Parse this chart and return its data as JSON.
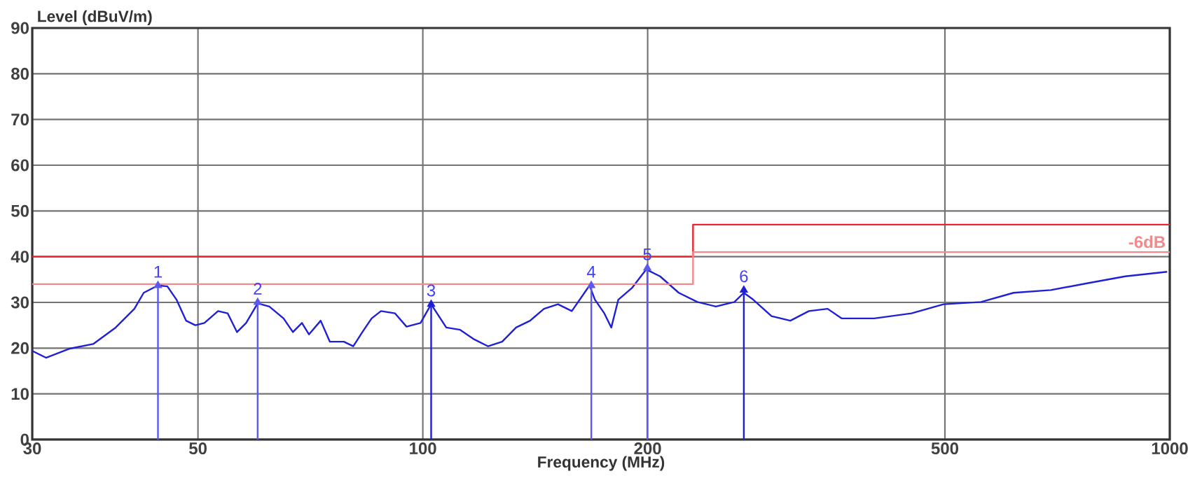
{
  "chart_data": {
    "type": "line",
    "xlabel": "Frequency (MHz)",
    "ylabel": "Level (dBuV/m)",
    "log": "x",
    "xlim": [
      30,
      1000
    ],
    "ylim": [
      0,
      90
    ],
    "xticks": [
      30,
      50,
      100,
      200,
      500,
      1000
    ],
    "yticks": [
      0,
      10,
      20,
      30,
      40,
      50,
      60,
      70,
      80,
      90
    ],
    "grid": true,
    "series": [
      {
        "color": "#1f1fd6",
        "x": [
          30,
          31.3,
          33.7,
          36.2,
          38.8,
          41.1,
          42.3,
          44.2,
          45.5,
          46.8,
          48.2,
          49.6,
          51.0,
          53.2,
          54.8,
          56.4,
          58.0,
          60.1,
          62.3,
          65.1,
          67.0,
          68.9,
          70.4,
          73.0,
          75.1,
          78.4,
          80.7,
          83.0,
          85.4,
          87.9,
          91.8,
          95.1,
          99.3,
          102.6,
          107.5,
          112.2,
          117.2,
          122.3,
          127.7,
          133.3,
          139.2,
          145.3,
          151.7,
          158.3,
          167.2,
          170,
          175,
          178.8,
          182.7,
          190.7,
          199.1,
          207.8,
          220.1,
          233.1,
          246.8,
          261.3,
          269,
          276.9,
          293,
          310.5,
          328.8,
          348.3,
          363.6,
          402,
          451,
          498,
          559,
          618,
          693,
          777,
          872,
          992
        ],
        "values": [
          19.4,
          17.9,
          19.9,
          20.9,
          24.5,
          28.6,
          32.1,
          33.7,
          33.5,
          30.6,
          26,
          25,
          25.5,
          28.1,
          27.6,
          23.5,
          25.5,
          29.8,
          29.1,
          26.5,
          23.5,
          25.5,
          23,
          26,
          21.4,
          21.4,
          20.4,
          23.5,
          26.5,
          28.1,
          27.6,
          24.7,
          25.5,
          29.6,
          24.5,
          24,
          21.9,
          20.4,
          21.4,
          24.5,
          26,
          28.6,
          29.6,
          28.1,
          33.7,
          30.6,
          27.6,
          24.5,
          30.6,
          33.2,
          37.2,
          35.7,
          32.1,
          30.1,
          29.1,
          30.1,
          32.1,
          30.6,
          27,
          26,
          28.1,
          28.6,
          26.5,
          26.5,
          27.6,
          29.6,
          30.1,
          32.1,
          32.7,
          34.2,
          35.7,
          36.7
        ]
      },
      {
        "type": "step",
        "color": "#e8262b",
        "x": [
          30,
          230,
          1000
        ],
        "values": [
          40,
          47,
          47
        ]
      },
      {
        "type": "step",
        "name": "-6dB",
        "color": "#f08a8c",
        "x": [
          30,
          230,
          1000
        ],
        "values": [
          34,
          41,
          41
        ]
      },
      {
        "type": "lollipop",
        "colors": [
          "#5a5af0",
          "#5a5af0",
          "#1f1fd6",
          "#5a5af0",
          "#5a5af0",
          "#1f1fd6"
        ],
        "x": [
          44.2,
          60.1,
          102.6,
          168.1,
          199.8,
          269
        ],
        "values": [
          33.7,
          30,
          29.6,
          33.7,
          37.5,
          32.7
        ]
      }
    ],
    "annotations": [
      {
        "text": "1",
        "x": 44.2,
        "y": 33.7
      },
      {
        "text": "2",
        "x": 60.1,
        "y": 30
      },
      {
        "text": "3",
        "x": 102.6,
        "y": 29.6
      },
      {
        "text": "4",
        "x": 168.1,
        "y": 33.7
      },
      {
        "text": "5",
        "x": 199.8,
        "y": 37.5
      },
      {
        "text": "6",
        "x": 269,
        "y": 32.7
      }
    ]
  }
}
